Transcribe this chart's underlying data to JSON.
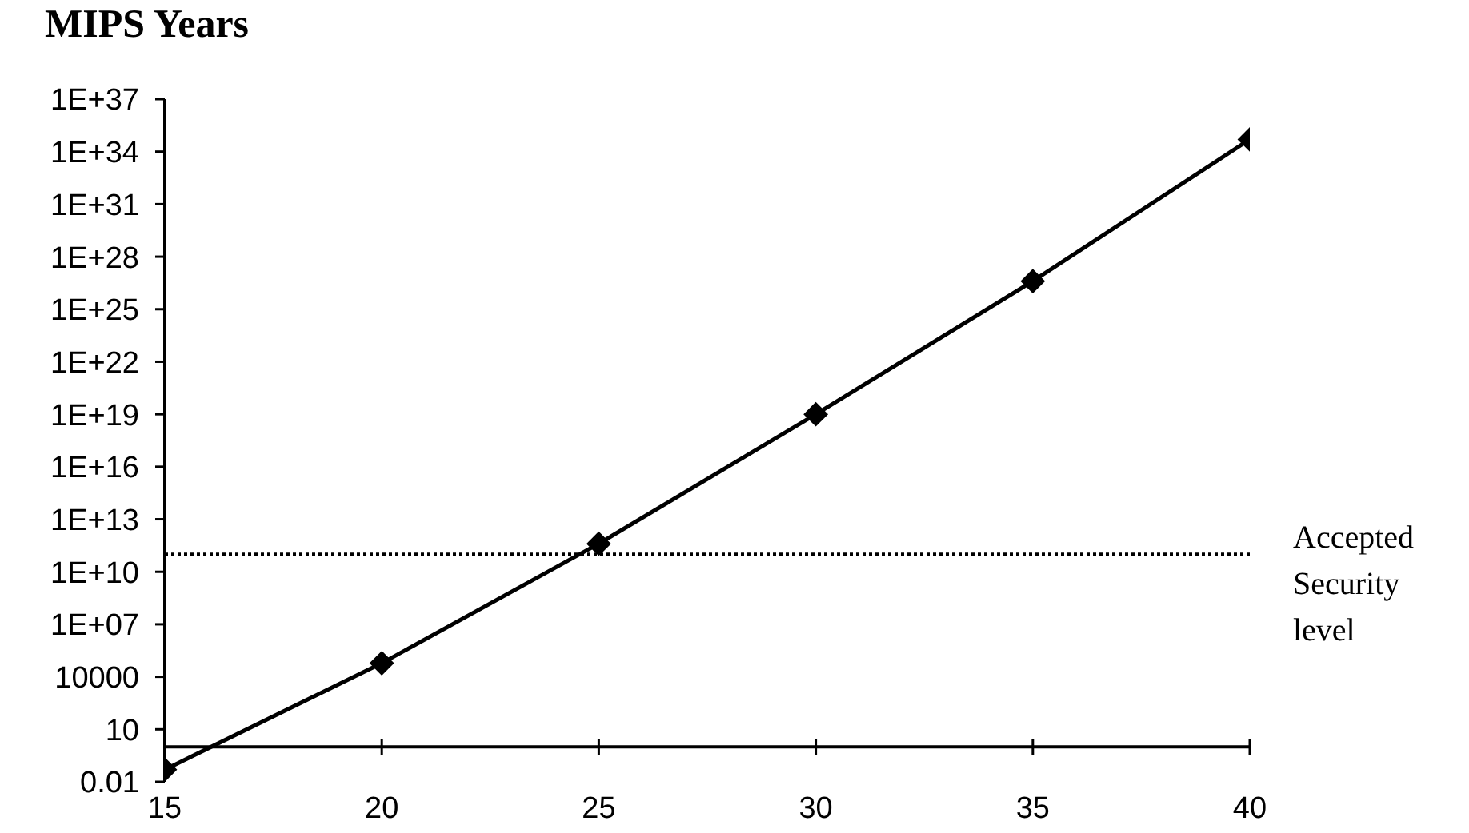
{
  "chart_data": {
    "type": "line",
    "ylabel": "MIPS Years",
    "x": [
      15,
      20,
      25,
      30,
      35,
      40
    ],
    "values": [
      0.05,
      60000.0,
      400000000000.0,
      1e+19,
      4e+26,
      5e+34
    ],
    "color": "#000000",
    "xlim": [
      15,
      40
    ],
    "xticks": [
      15,
      20,
      25,
      30,
      35,
      40
    ],
    "ylim": [
      0.01,
      1e+37
    ],
    "yticks": [
      0.01,
      10,
      10000,
      {
        "value": 10000000.0,
        "label": "1E+07"
      },
      {
        "value": 10000000000.0,
        "label": "1E+10"
      },
      {
        "value": 10000000000000.0,
        "label": "1E+13"
      },
      {
        "value": 1e+16,
        "label": "1E+16"
      },
      {
        "value": 1e+19,
        "label": "1E+19"
      },
      {
        "value": 1e+22,
        "label": "1E+22"
      },
      {
        "value": 1e+25,
        "label": "1E+25"
      },
      {
        "value": 1e+28,
        "label": "1E+28"
      },
      {
        "value": 1e+31,
        "label": "1E+31"
      },
      {
        "value": 1e+34,
        "label": "1E+34"
      },
      {
        "value": 1e+37,
        "label": "1E+37"
      }
    ],
    "log": "y",
    "marker": "diamond",
    "line_style": "solid",
    "ref_lines": [
      {
        "axis": "y",
        "value": 100000000000.0,
        "label": "Accepted Security level",
        "color": "#000000",
        "line_style": "dotted"
      }
    ]
  }
}
